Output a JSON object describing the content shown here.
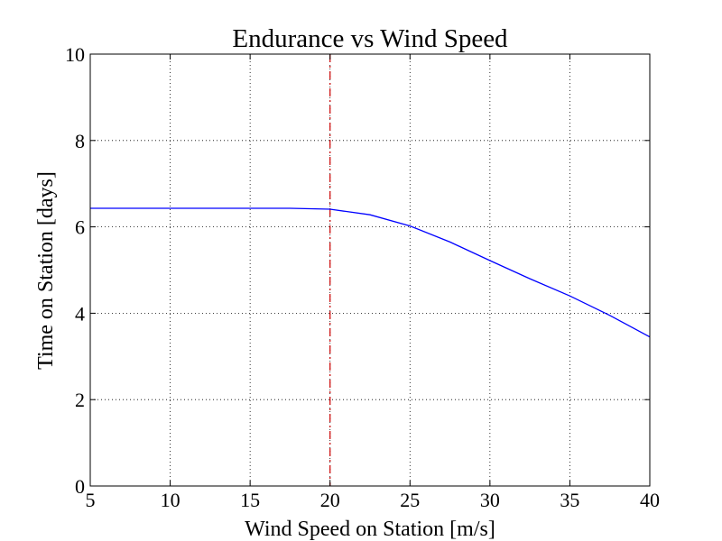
{
  "chart_data": {
    "type": "line",
    "title": "Endurance vs Wind Speed",
    "xlabel": "Wind Speed on Station [m/s]",
    "ylabel": "Time on Station [days]",
    "xlim": [
      5,
      40
    ],
    "ylim": [
      0,
      10
    ],
    "xticks": [
      "5",
      "10",
      "15",
      "20",
      "25",
      "30",
      "35",
      "40"
    ],
    "yticks": [
      "0",
      "2",
      "4",
      "6",
      "8",
      "10"
    ],
    "grid": true,
    "series": [
      {
        "color": "#0000ff",
        "x": [
          5,
          7.5,
          10,
          12.5,
          15,
          17.5,
          20,
          22.5,
          25,
          27.5,
          30,
          32.5,
          35,
          37.5,
          40
        ],
        "y": [
          6.43,
          6.43,
          6.43,
          6.43,
          6.43,
          6.43,
          6.41,
          6.28,
          6.02,
          5.65,
          5.22,
          4.8,
          4.4,
          3.95,
          3.45
        ]
      }
    ],
    "reference_lines": [
      {
        "orientation": "vertical",
        "x": 20,
        "color": "#cc0000",
        "style": "dash-dot"
      }
    ]
  }
}
